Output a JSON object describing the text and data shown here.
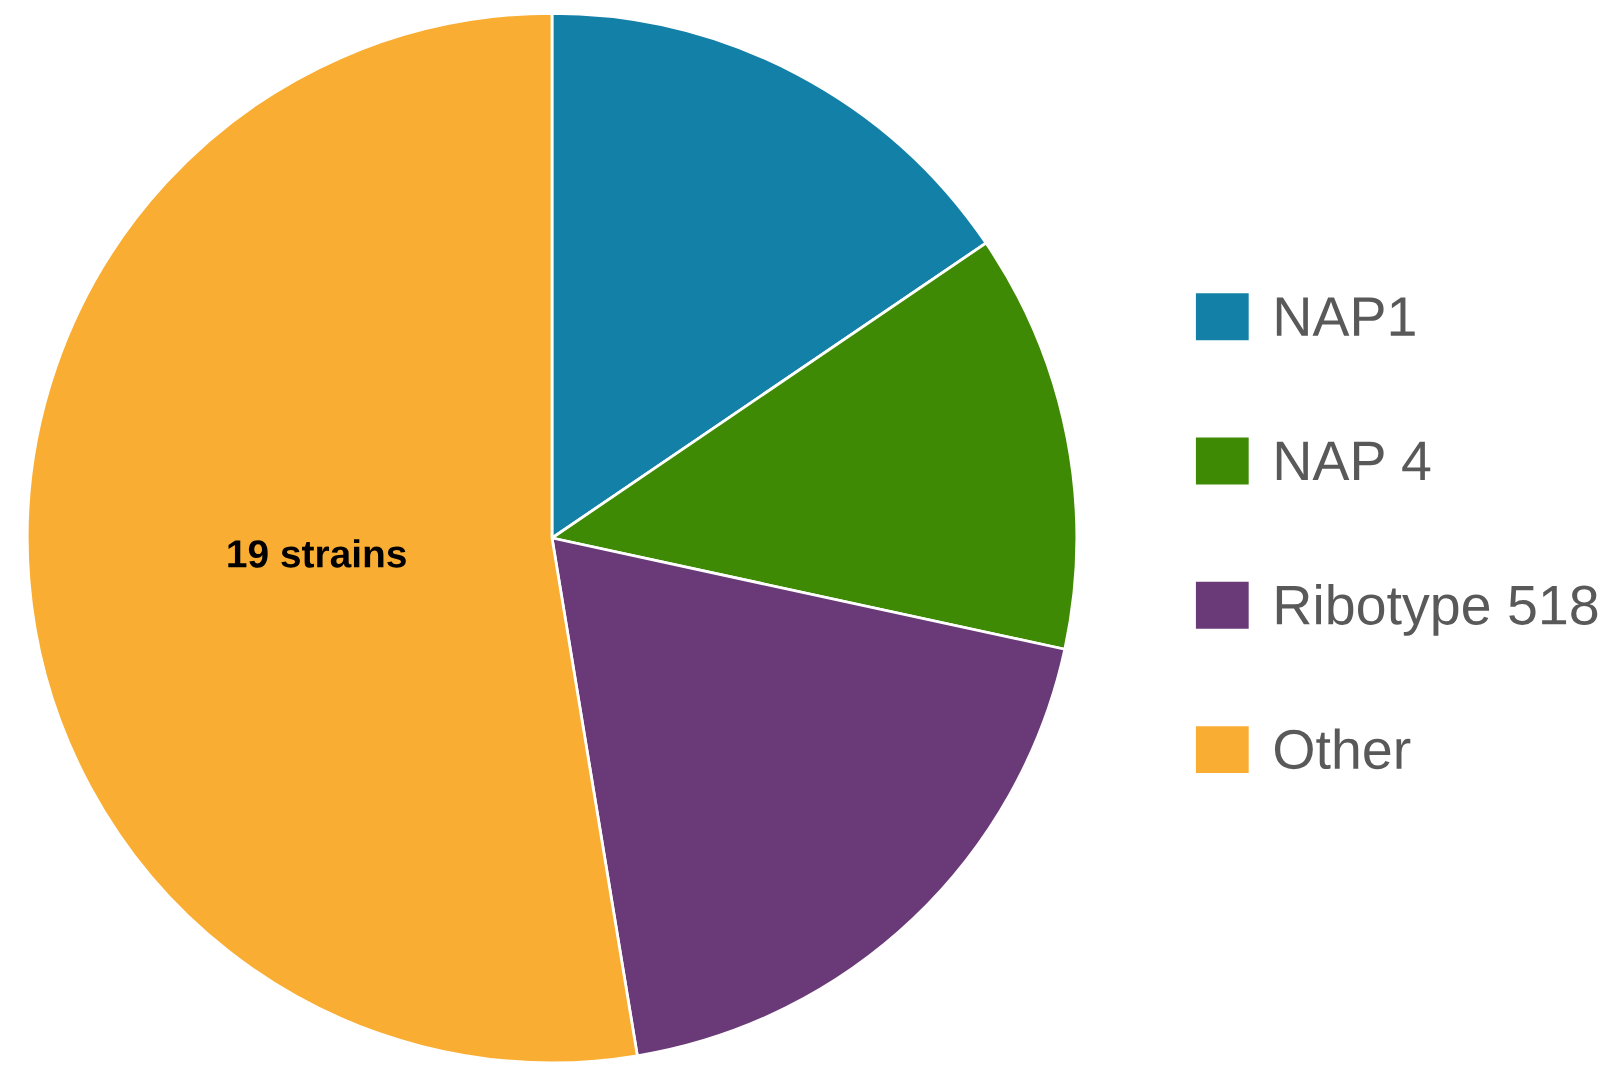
{
  "chart_data": {
    "type": "pie",
    "categories": [
      "NAP1",
      "NAP 4",
      "Ribotype 518",
      "Other"
    ],
    "values": [
      15.5,
      12.9,
      19.0,
      52.6
    ],
    "colors": [
      "#1380a8",
      "#3f8a05",
      "#6a3a78",
      "#f9ae33"
    ],
    "annotations": [
      {
        "text": "19 strains",
        "x": "Other"
      }
    ],
    "legend": "right"
  }
}
